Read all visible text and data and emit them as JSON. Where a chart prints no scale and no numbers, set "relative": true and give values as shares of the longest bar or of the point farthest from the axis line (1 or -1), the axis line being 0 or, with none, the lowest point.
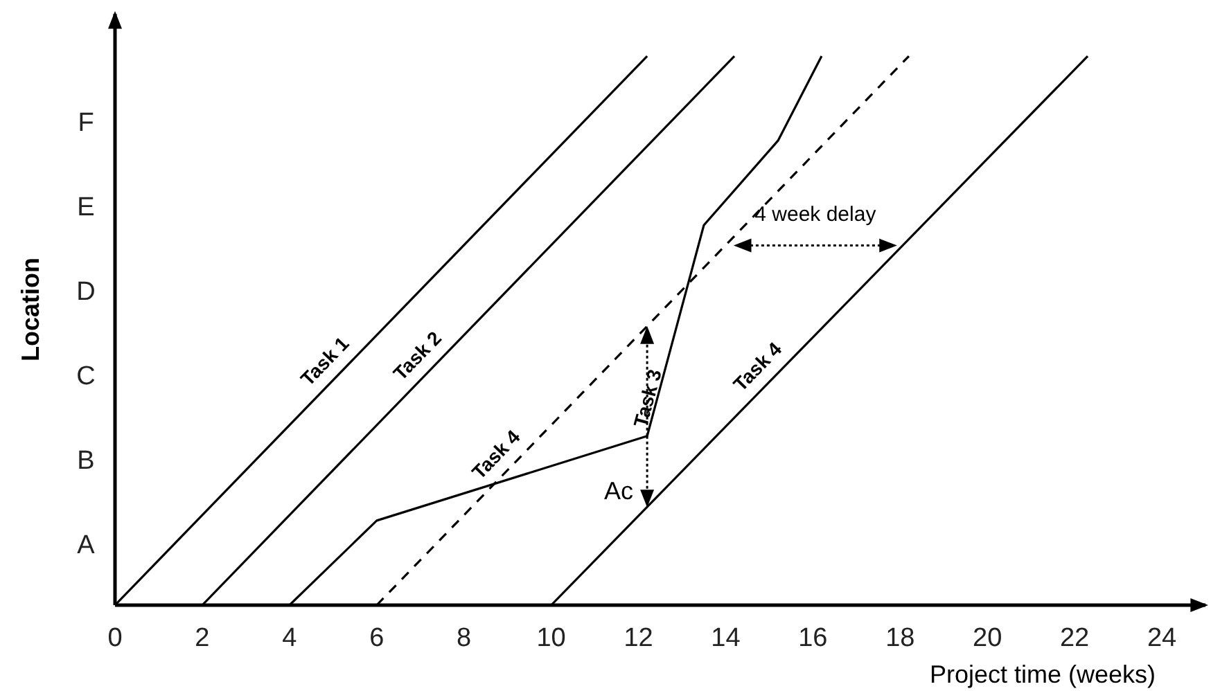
{
  "chart_data": {
    "type": "line",
    "xlabel": "Project time (weeks)",
    "ylabel": "Location",
    "relative": true,
    "xlim": [
      0,
      25
    ],
    "xticks": [
      0,
      2,
      4,
      6,
      8,
      10,
      12,
      14,
      16,
      18,
      20,
      22,
      24
    ],
    "series": [
      {
        "name": "Task 1",
        "color": "#000000",
        "line_style": "solid",
        "x": [
          0,
          12.2
        ],
        "values": [
          0,
          1
        ]
      },
      {
        "name": "Task 2",
        "color": "#000000",
        "line_style": "solid",
        "x": [
          2,
          14.2
        ],
        "values": [
          0,
          1
        ]
      },
      {
        "name": "Task 3",
        "color": "#000000",
        "line_style": "solid",
        "x": [
          4,
          6,
          12.2,
          13.5,
          15.2,
          16.2
        ],
        "values": [
          0,
          0.154,
          0.308,
          0.692,
          0.846,
          1
        ]
      },
      {
        "name": "Task 4",
        "color": "#000000",
        "line_style": "dashed",
        "x": [
          6,
          18.2
        ],
        "values": [
          0,
          1
        ]
      },
      {
        "name": "Task 4",
        "color": "#000000",
        "line_style": "solid",
        "x": [
          10,
          22.3
        ],
        "values": [
          0,
          1
        ]
      }
    ],
    "annotations": [
      "4 week delay",
      {
        "text": "Ac",
        "x": 12.2,
        "y": 0.178
      },
      "F",
      "E",
      "D",
      "C",
      "B",
      "A"
    ]
  }
}
